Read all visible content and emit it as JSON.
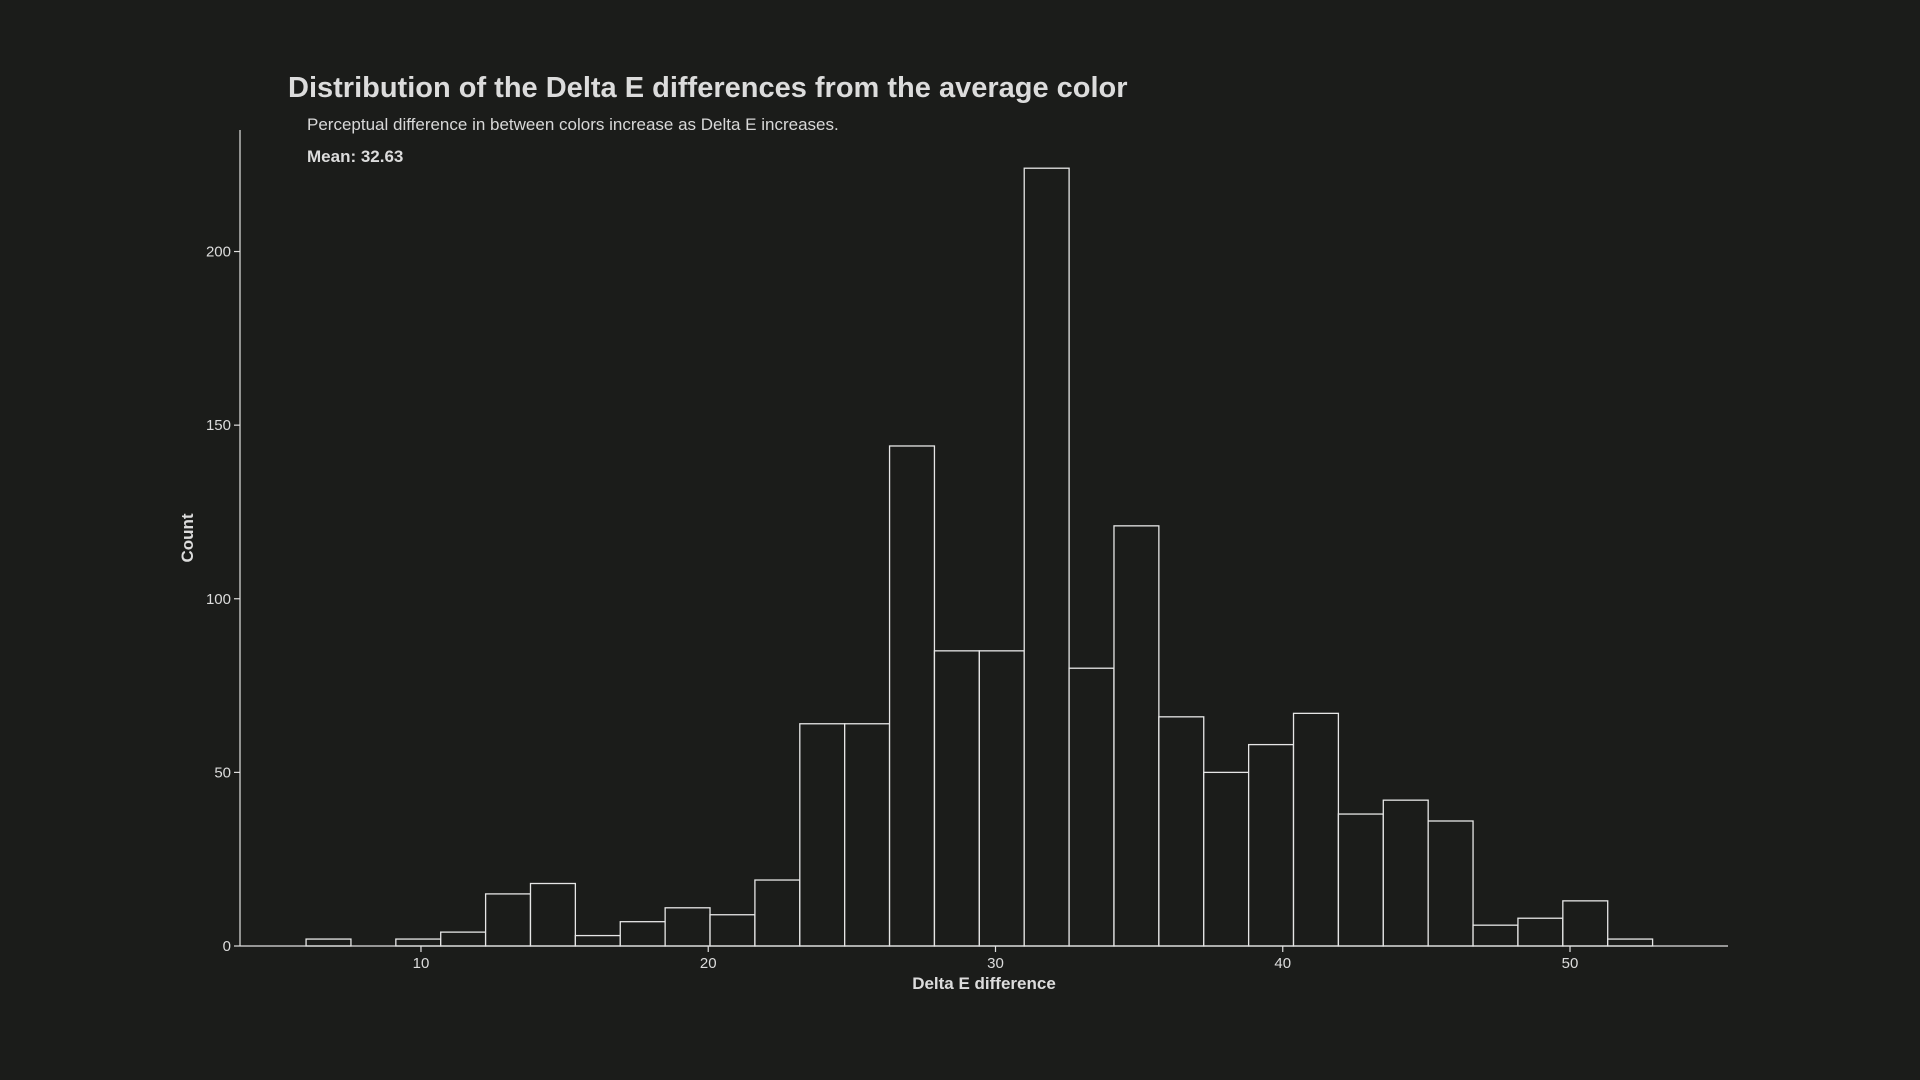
{
  "chart_data": {
    "type": "bar",
    "title": "Distribution of the Delta E differences from the average color",
    "subtitle": "Perceptual difference in between colors increase as Delta E increases.",
    "annotation": "Mean: 32.63",
    "xlabel": "Delta E difference",
    "ylabel": "Count",
    "xlim": [
      3.7,
      55.5
    ],
    "ylim": [
      0,
      235
    ],
    "xticks": [
      10,
      20,
      30,
      40,
      50
    ],
    "yticks": [
      0,
      50,
      100,
      150,
      200
    ],
    "grid": false,
    "bin_start": 6.0,
    "bin_width": 1.5625,
    "values": [
      2,
      0,
      2,
      4,
      15,
      18,
      3,
      7,
      11,
      9,
      19,
      64,
      64,
      144,
      85,
      85,
      224,
      80,
      121,
      66,
      50,
      58,
      67,
      38,
      42,
      36,
      6,
      8,
      13,
      2
    ]
  },
  "colors": {
    "background": "#1b1c1a",
    "bar_edge": "#e6e6e6",
    "bar_fill": "#1b1c1a",
    "text": "#dcdcdc"
  }
}
